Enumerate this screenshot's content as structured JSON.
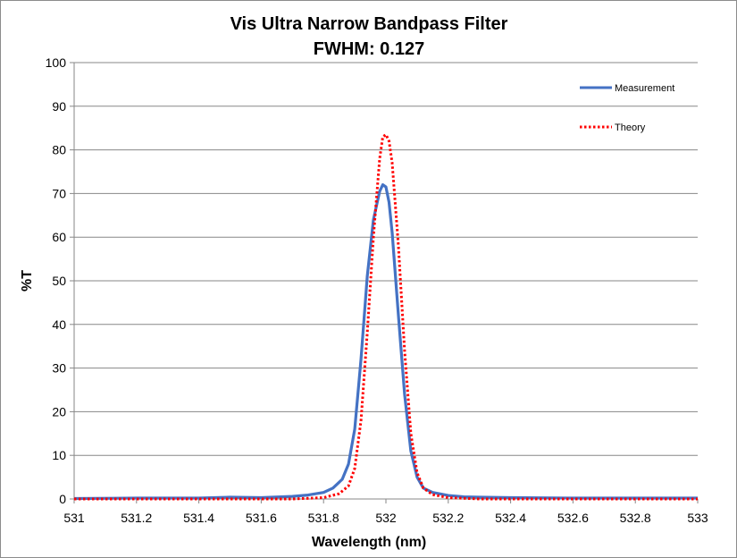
{
  "chart_data": {
    "type": "line",
    "title_line1": "Vis Ultra Narrow Bandpass Filter",
    "title_line2": "FWHM: 0.127",
    "xlabel": "Wavelength (nm)",
    "ylabel": "%T",
    "xlim": [
      531,
      533
    ],
    "ylim": [
      0,
      100
    ],
    "x_ticks": [
      "531",
      "531.2",
      "531.4",
      "531.6",
      "531.8",
      "532",
      "532.2",
      "532.4",
      "532.6",
      "532.8",
      "533"
    ],
    "y_ticks": [
      "0",
      "10",
      "20",
      "30",
      "40",
      "50",
      "60",
      "70",
      "80",
      "90",
      "100"
    ],
    "grid": "horizontal",
    "legend_position": "top-right",
    "series": [
      {
        "name": "Measurement",
        "color": "#4472c4",
        "style": "solid",
        "x": [
          531.0,
          531.2,
          531.4,
          531.5,
          531.6,
          531.7,
          531.75,
          531.8,
          531.83,
          531.86,
          531.88,
          531.9,
          531.92,
          531.94,
          531.96,
          531.98,
          531.99,
          532.0,
          532.01,
          532.02,
          532.04,
          532.06,
          532.08,
          532.1,
          532.12,
          532.15,
          532.2,
          532.25,
          532.3,
          532.4,
          532.6,
          532.8,
          533.0
        ],
        "y": [
          0.1,
          0.2,
          0.2,
          0.4,
          0.3,
          0.6,
          0.9,
          1.5,
          2.5,
          4.5,
          8.0,
          16.0,
          32.0,
          51.0,
          64.0,
          70.5,
          72.0,
          71.5,
          68.0,
          61.0,
          42.0,
          24.0,
          11.0,
          5.0,
          2.5,
          1.5,
          0.8,
          0.5,
          0.4,
          0.3,
          0.2,
          0.2,
          0.2
        ]
      },
      {
        "name": "Theory",
        "color": "#ff0000",
        "style": "dotted",
        "x": [
          531.0,
          531.5,
          531.7,
          531.8,
          531.85,
          531.88,
          531.9,
          531.92,
          531.94,
          531.96,
          531.98,
          531.99,
          532.0,
          532.01,
          532.02,
          532.04,
          532.06,
          532.08,
          532.1,
          532.12,
          532.15,
          532.2,
          532.3,
          532.5,
          533.0
        ],
        "y": [
          0,
          0,
          0,
          0.3,
          1.2,
          3.0,
          7.0,
          18.0,
          38.0,
          60.0,
          78.0,
          83.0,
          83.5,
          82.0,
          77.0,
          58.0,
          34.0,
          15.0,
          6.0,
          2.5,
          1.0,
          0.3,
          0,
          0,
          0
        ]
      }
    ]
  }
}
